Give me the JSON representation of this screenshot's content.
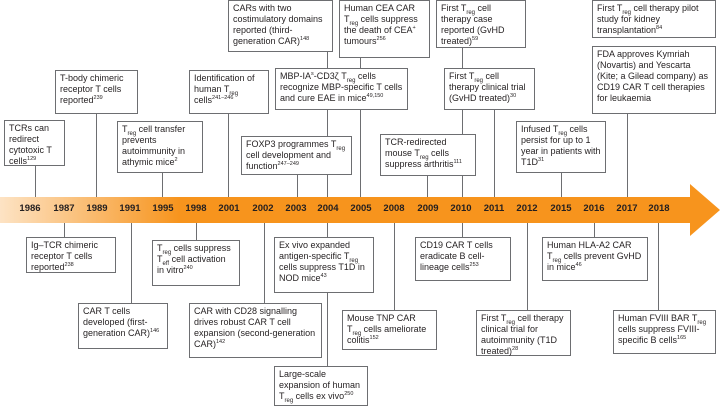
{
  "arrow_color": "#f7941d",
  "years": [
    "1986",
    "1987",
    "1989",
    "1991",
    "1995",
    "1998",
    "2001",
    "2002",
    "2003",
    "2004",
    "2005",
    "2008",
    "2009",
    "2010",
    "2011",
    "2012",
    "2015",
    "2016",
    "2017",
    "2018"
  ],
  "events": {
    "e1986": [
      "TCRs can redirect cytotoxic T cells",
      "129"
    ],
    "e1987": [
      "Ig–TCR chimeric receptor T cells reported",
      "238"
    ],
    "e1989": [
      "T-body chimeric receptor T cells reported",
      "239"
    ],
    "e1991": [
      "CAR T cells developed (first-generation CAR)",
      "146"
    ],
    "e1995_pre": "T",
    "e1995_sub": "reg",
    "e1995": [
      " cell transfer prevents autoimmunity in athymic mice",
      "2"
    ],
    "e1998_pre": "T",
    "e1998_sub": "reg",
    "e1998_mid": " cells suppress T",
    "e1998_sub2": "eff",
    "e1998": [
      " cell activation in vitro",
      "240"
    ],
    "e2001_pre": "Identification of human T",
    "e2001_sub": "reg",
    "e2001": [
      " cells",
      "241–246"
    ],
    "e2002": [
      "CAR with CD28 signalling drives robust CAR T cell expansion (second-generation CAR)",
      "142"
    ],
    "e2003_pre": "FOXP3 programmes T",
    "e2003_sub": "reg",
    "e2003": [
      " cell development and function",
      "247–249"
    ],
    "e2004_top": "CARs with two costimulatory domains reported (third-generation CAR)",
    "e2004_top_ref": "148",
    "e2004_mid": "MBP-IA",
    "e2004_mid_sup": "s",
    "e2004_mid_b": "-CD3ζ T",
    "e2004_mid_sub": "reg",
    "e2004_mid_c": " cells recognize MBP-specific T cells and cure EAE in mice",
    "e2004_mid_ref": "49,150",
    "e2004_b1_a": "Ex vivo expanded antigen-specific T",
    "e2004_b1_sub": "reg",
    "e2004_b1_b": " cells suppress T1D in NOD mice",
    "e2004_b1_ref": "43",
    "e2004_b2_a": "Large-scale expansion of human T",
    "e2004_b2_sub": "reg",
    "e2004_b2_b": " cells ex vivo",
    "e2004_b2_ref": "250",
    "e2005_a": "Human CEA CAR T",
    "e2005_sub": "reg",
    "e2005_b": " cells suppress the death of CEA",
    "e2005_sup": "+",
    "e2005_c": " tumours",
    "e2005_ref": "256",
    "e2008_a": "Mouse TNP CAR T",
    "e2008_sub": "reg",
    "e2008_b": " cells ameliorate colitis",
    "e2008_ref": "152",
    "e2009_a": "TCR-redirected mouse T",
    "e2009_sub": "reg",
    "e2009_b": " cells suppress arthritis",
    "e2009_ref": "111",
    "e2010_a": "First T",
    "e2010_sub": "reg",
    "e2010_b": " cell therapy case reported (GvHD treated)",
    "e2010_ref": "59",
    "e2010b_a": "CD19 CAR T cells eradicate B cell-lineage cells",
    "e2010b_ref": "253",
    "e2011_a": "First T",
    "e2011_sub": "reg",
    "e2011_b": " cell therapy clinical trial (GvHD treated)",
    "e2011_ref": "30",
    "e2012_a": "First T",
    "e2012_sub": "reg",
    "e2012_b": " cell therapy clinical trial for autoimmunity (T1D treated)",
    "e2012_ref": "28",
    "e2015_a": "Infused T",
    "e2015_sub": "reg",
    "e2015_b": " cells persist for up to 1 year in patients with T1D",
    "e2015_ref": "31",
    "e2016_a": "Human HLA-A2 CAR T",
    "e2016_sub": "reg",
    "e2016_b": " cells prevent GvHD in mice",
    "e2016_ref": "46",
    "e2017_a": "First T",
    "e2017_sub": "reg",
    "e2017_b": " cell therapy pilot study for kidney transplantation",
    "e2017_ref": "84",
    "e2017b_a": "FDA approves Kymriah (Novartis) and Yescarta (Kite; a Gilead company) as CD19 CAR T cell therapies for leukaemia",
    "e2018_a": "Human FVIII BAR T",
    "e2018_sub": "reg",
    "e2018_b": " cells suppress FVIII-specific B cells",
    "e2018_ref": "165"
  }
}
